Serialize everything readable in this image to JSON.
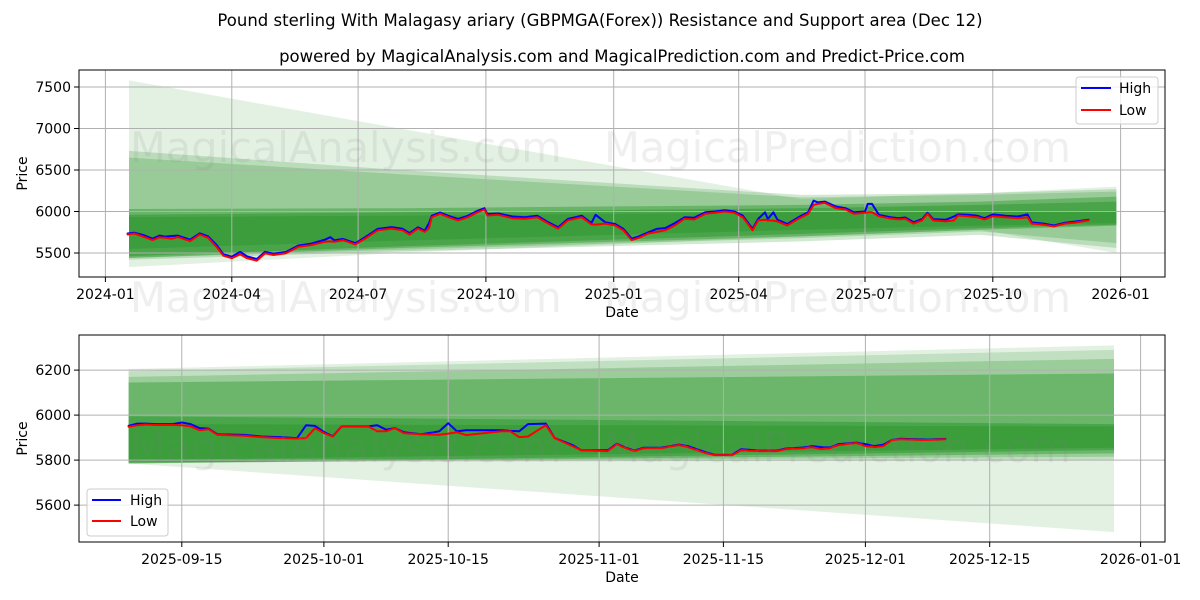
{
  "title": "Pound sterling With Malagasy ariary (GBPMGA(Forex)) Resistance and Support area (Dec 12)",
  "subtitle": "powered by MagicalAnalysis.com and MagicalPrediction.com and Predict-Price.com",
  "watermarks": [
    "MagicalAnalysis.com",
    "MagicalPrediction.com"
  ],
  "colors": {
    "high": "#0000ff",
    "low": "#ff0000",
    "band": "#008000",
    "grid": "#b0b0b0"
  },
  "legend": {
    "high_label": "High",
    "low_label": "Low"
  },
  "chart_data": [
    {
      "type": "line",
      "title": "powered by MagicalAnalysis.com and MagicalPrediction.com and Predict-Price.com",
      "xlabel": "Date",
      "ylabel": "Price",
      "xlim": [
        "2023-12-13",
        "2026-02-02"
      ],
      "ylim": [
        5211,
        7705
      ],
      "grid": true,
      "legend_position": "upper right",
      "yticks": [
        5500,
        6000,
        6500,
        7000,
        7500
      ],
      "xticks": [
        {
          "date": "2024-01-01",
          "label": "2024-01"
        },
        {
          "date": "2024-04-01",
          "label": "2024-04"
        },
        {
          "date": "2024-07-01",
          "label": "2024-07"
        },
        {
          "date": "2024-10-01",
          "label": "2024-10"
        },
        {
          "date": "2025-01-01",
          "label": "2025-01"
        },
        {
          "date": "2025-04-01",
          "label": "2025-04"
        },
        {
          "date": "2025-07-01",
          "label": "2025-07"
        },
        {
          "date": "2025-10-01",
          "label": "2025-10"
        },
        {
          "date": "2026-01-01",
          "label": "2026-01"
        }
      ],
      "x": [
        "2024-01-17",
        "2024-01-22",
        "2024-01-29",
        "2024-02-04",
        "2024-02-09",
        "2024-02-13",
        "2024-02-18",
        "2024-02-22",
        "2024-03-02",
        "2024-03-09",
        "2024-03-15",
        "2024-03-21",
        "2024-03-26",
        "2024-04-01",
        "2024-04-07",
        "2024-04-12",
        "2024-04-19",
        "2024-04-25",
        "2024-05-01",
        "2024-05-10",
        "2024-05-19",
        "2024-05-28",
        "2024-06-07",
        "2024-06-11",
        "2024-06-14",
        "2024-06-20",
        "2024-06-29",
        "2024-07-06",
        "2024-07-15",
        "2024-07-25",
        "2024-08-02",
        "2024-08-07",
        "2024-08-13",
        "2024-08-18",
        "2024-08-21",
        "2024-08-23",
        "2024-08-29",
        "2024-09-04",
        "2024-09-11",
        "2024-09-18",
        "2024-09-25",
        "2024-09-30",
        "2024-10-02",
        "2024-10-10",
        "2024-10-20",
        "2024-10-29",
        "2024-11-07",
        "2024-11-15",
        "2024-11-22",
        "2024-11-29",
        "2024-12-09",
        "2024-12-16",
        "2024-12-19",
        "2024-12-26",
        "2025-01-02",
        "2025-01-08",
        "2025-01-14",
        "2025-01-19",
        "2025-01-26",
        "2025-02-01",
        "2025-02-07",
        "2025-02-14",
        "2025-02-21",
        "2025-02-28",
        "2025-03-08",
        "2025-03-15",
        "2025-03-22",
        "2025-03-29",
        "2025-04-04",
        "2025-04-11",
        "2025-04-15",
        "2025-04-20",
        "2025-04-22",
        "2025-04-26",
        "2025-04-29",
        "2025-05-06",
        "2025-05-14",
        "2025-05-21",
        "2025-05-25",
        "2025-05-28",
        "2025-06-02",
        "2025-06-10",
        "2025-06-17",
        "2025-06-23",
        "2025-07-01",
        "2025-07-03",
        "2025-07-06",
        "2025-07-11",
        "2025-07-18",
        "2025-07-25",
        "2025-07-30",
        "2025-08-05",
        "2025-08-11",
        "2025-08-15",
        "2025-08-19",
        "2025-08-28",
        "2025-09-03",
        "2025-09-06",
        "2025-09-13",
        "2025-09-20",
        "2025-09-25",
        "2025-10-01",
        "2025-10-10",
        "2025-10-19",
        "2025-10-26",
        "2025-10-29",
        "2025-11-06",
        "2025-11-14",
        "2025-11-22",
        "2025-11-29",
        "2025-12-09"
      ],
      "series": [
        {
          "name": "High",
          "color": "#0000ff",
          "values": [
            5735,
            5745,
            5712,
            5672,
            5710,
            5698,
            5705,
            5710,
            5660,
            5738,
            5700,
            5598,
            5485,
            5455,
            5515,
            5460,
            5428,
            5515,
            5492,
            5512,
            5590,
            5612,
            5660,
            5690,
            5652,
            5670,
            5618,
            5690,
            5790,
            5812,
            5792,
            5740,
            5810,
            5770,
            5860,
            5948,
            5988,
            5948,
            5910,
            5948,
            6008,
            6040,
            5970,
            5976,
            5940,
            5930,
            5950,
            5870,
            5810,
            5910,
            5950,
            5860,
            5960,
            5870,
            5850,
            5790,
            5672,
            5700,
            5750,
            5790,
            5800,
            5860,
            5930,
            5925,
            5990,
            6000,
            6015,
            6000,
            5950,
            5790,
            5910,
            5990,
            5910,
            5990,
            5900,
            5850,
            5930,
            5990,
            6130,
            6110,
            6120,
            6060,
            6040,
            5990,
            6000,
            6092,
            6092,
            5960,
            5935,
            5920,
            5928,
            5870,
            5908,
            5985,
            5908,
            5900,
            5940,
            5965,
            5960,
            5948,
            5920,
            5965,
            5950,
            5940,
            5965,
            5868,
            5855,
            5832,
            5865,
            5878,
            5900
          ]
        },
        {
          "name": "Low",
          "color": "#ff0000",
          "values": [
            5723,
            5735,
            5694,
            5655,
            5690,
            5683,
            5672,
            5694,
            5643,
            5723,
            5683,
            5575,
            5468,
            5437,
            5485,
            5437,
            5409,
            5497,
            5476,
            5497,
            5575,
            5595,
            5635,
            5640,
            5635,
            5655,
            5604,
            5675,
            5774,
            5794,
            5774,
            5723,
            5794,
            5754,
            5800,
            5932,
            5972,
            5932,
            5893,
            5932,
            5992,
            6024,
            5952,
            5960,
            5920,
            5913,
            5932,
            5854,
            5794,
            5893,
            5932,
            5845,
            5842,
            5854,
            5833,
            5774,
            5655,
            5683,
            5735,
            5754,
            5774,
            5833,
            5913,
            5905,
            5972,
            5984,
            6000,
            5984,
            5932,
            5774,
            5893,
            5900,
            5893,
            5890,
            5881,
            5833,
            5913,
            5972,
            6080,
            6092,
            6104,
            6040,
            6024,
            5972,
            5984,
            5990,
            5992,
            5944,
            5920,
            5905,
            5913,
            5854,
            5893,
            5972,
            5893,
            5881,
            5893,
            5952,
            5944,
            5932,
            5905,
            5944,
            5932,
            5920,
            5932,
            5854,
            5842,
            5821,
            5854,
            5866,
            5893
          ]
        }
      ],
      "band_dates": [
        "2024-01-18",
        "2024-07-31",
        "2025-05-16",
        "2025-09-22",
        "2025-12-29"
      ],
      "bands": [
        {
          "name": "outer",
          "alpha": 0.11,
          "upper": [
            7580,
            7000,
            6150,
            6220,
            6300
          ],
          "lower": [
            5330,
            5500,
            5700,
            5780,
            5500
          ]
        },
        {
          "name": "wide-1",
          "alpha": 0.18,
          "upper": [
            6730,
            6500,
            6200,
            6220,
            6270
          ],
          "lower": [
            5420,
            5520,
            5640,
            5720,
            5560
          ]
        },
        {
          "name": "wide-2",
          "alpha": 0.18,
          "upper": [
            6650,
            6450,
            6170,
            6200,
            6240
          ],
          "lower": [
            5440,
            5540,
            5680,
            5760,
            5620
          ]
        },
        {
          "name": "mid",
          "alpha": 0.3,
          "upper": [
            6030,
            6040,
            6080,
            6120,
            6180
          ],
          "lower": [
            5440,
            5560,
            5700,
            5780,
            5830
          ]
        },
        {
          "name": "dark",
          "alpha": 0.3,
          "upper": [
            5960,
            5990,
            6040,
            6080,
            6120
          ],
          "lower": [
            5460,
            5580,
            5730,
            5800,
            5840
          ]
        },
        {
          "name": "core",
          "alpha": 0.2,
          "upper": [
            5930,
            5950,
            5990,
            6000,
            6010
          ],
          "lower": [
            5550,
            5650,
            5780,
            5830,
            5860
          ]
        }
      ]
    },
    {
      "type": "line",
      "title": "",
      "xlabel": "Date",
      "ylabel": "Price",
      "xlim": [
        "2025-09-03T10:00:00Z",
        "2026-01-03T18:00:00Z"
      ],
      "ylim": [
        5436,
        6356
      ],
      "grid": true,
      "legend_position": "lower left",
      "yticks": [
        5600,
        5800,
        6000,
        6200
      ],
      "xticks": [
        {
          "date": "2025-09-15",
          "label": "2025-09-15"
        },
        {
          "date": "2025-10-01",
          "label": "2025-10-01"
        },
        {
          "date": "2025-10-15",
          "label": "2025-10-15"
        },
        {
          "date": "2025-11-01",
          "label": "2025-11-01"
        },
        {
          "date": "2025-11-15",
          "label": "2025-11-15"
        },
        {
          "date": "2025-12-01",
          "label": "2025-12-01"
        },
        {
          "date": "2025-12-15",
          "label": "2025-12-15"
        },
        {
          "date": "2026-01-01",
          "label": "2026-01-01"
        }
      ],
      "x": [
        "2025-09-09",
        "2025-09-10",
        "2025-09-11",
        "2025-09-12",
        "2025-09-14",
        "2025-09-15",
        "2025-09-16",
        "2025-09-17",
        "2025-09-18",
        "2025-09-19",
        "2025-09-22",
        "2025-09-24",
        "2025-09-26",
        "2025-09-28",
        "2025-09-29",
        "2025-09-30",
        "2025-10-01",
        "2025-10-02",
        "2025-10-03",
        "2025-10-06",
        "2025-10-07",
        "2025-10-08",
        "2025-10-09",
        "2025-10-10",
        "2025-10-12",
        "2025-10-14",
        "2025-10-15",
        "2025-10-16",
        "2025-10-17",
        "2025-10-21",
        "2025-10-22",
        "2025-10-23",
        "2025-10-24",
        "2025-10-26",
        "2025-10-27",
        "2025-10-29",
        "2025-10-30",
        "2025-11-02",
        "2025-11-03",
        "2025-11-04",
        "2025-11-05",
        "2025-11-06",
        "2025-11-08",
        "2025-11-10",
        "2025-11-11",
        "2025-11-13",
        "2025-11-14",
        "2025-11-16",
        "2025-11-17",
        "2025-11-19",
        "2025-11-21",
        "2025-11-22",
        "2025-11-24",
        "2025-11-25",
        "2025-11-26",
        "2025-11-27",
        "2025-11-28",
        "2025-11-30",
        "2025-12-01",
        "2025-12-02",
        "2025-12-03",
        "2025-12-04",
        "2025-12-05",
        "2025-12-08",
        "2025-12-10"
      ],
      "series": [
        {
          "name": "High",
          "color": "#0000ff",
          "values": [
            5952,
            5962,
            5962,
            5960,
            5960,
            5967,
            5960,
            5942,
            5940,
            5915,
            5912,
            5905,
            5902,
            5898,
            5955,
            5952,
            5925,
            5906,
            5950,
            5950,
            5955,
            5935,
            5942,
            5924,
            5915,
            5928,
            5964,
            5928,
            5933,
            5933,
            5930,
            5928,
            5960,
            5962,
            5898,
            5867,
            5844,
            5844,
            5873,
            5855,
            5842,
            5855,
            5855,
            5869,
            5862,
            5835,
            5824,
            5824,
            5849,
            5842,
            5842,
            5851,
            5856,
            5862,
            5858,
            5856,
            5871,
            5878,
            5871,
            5862,
            5868,
            5890,
            5895,
            5891,
            5894
          ]
        },
        {
          "name": "Low",
          "color": "#ff0000",
          "values": [
            5948,
            5955,
            5958,
            5956,
            5956,
            5955,
            5950,
            5933,
            5938,
            5913,
            5908,
            5902,
            5898,
            5896,
            5898,
            5942,
            5920,
            5905,
            5950,
            5950,
            5928,
            5928,
            5942,
            5920,
            5915,
            5913,
            5918,
            5924,
            5911,
            5928,
            5928,
            5902,
            5905,
            5955,
            5898,
            5862,
            5844,
            5840,
            5871,
            5853,
            5840,
            5853,
            5853,
            5867,
            5858,
            5831,
            5822,
            5822,
            5844,
            5840,
            5840,
            5849,
            5853,
            5858,
            5849,
            5853,
            5867,
            5876,
            5862,
            5858,
            5862,
            5889,
            5893,
            5889,
            5893
          ]
        }
      ],
      "band_dates": [
        "2025-09-09",
        "2025-12-29"
      ],
      "bands": [
        {
          "name": "outer",
          "alpha": 0.11,
          "upper": [
            6205,
            6310
          ],
          "lower": [
            5785,
            5480
          ]
        },
        {
          "name": "wide-1",
          "alpha": 0.15,
          "upper": [
            6195,
            6290
          ],
          "lower": [
            5790,
            5800
          ]
        },
        {
          "name": "wide-2",
          "alpha": 0.2,
          "upper": [
            6170,
            6250
          ],
          "lower": [
            5790,
            5815
          ]
        },
        {
          "name": "mid",
          "alpha": 0.3,
          "upper": [
            6145,
            6185
          ],
          "lower": [
            5785,
            5830
          ]
        },
        {
          "name": "dark",
          "alpha": 0.3,
          "upper": [
            5995,
            5960
          ],
          "lower": [
            5785,
            5845
          ]
        },
        {
          "name": "core",
          "alpha": 0.2,
          "upper": [
            5960,
            5950
          ],
          "lower": [
            5800,
            5855
          ]
        }
      ]
    }
  ]
}
